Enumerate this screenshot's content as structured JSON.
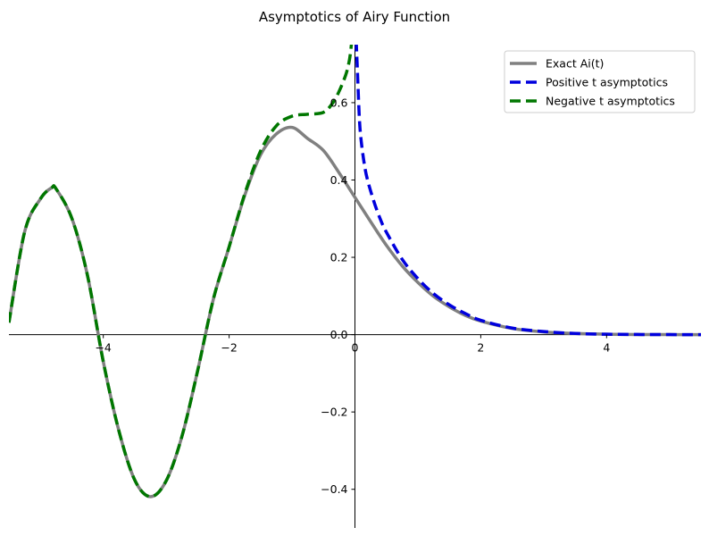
{
  "chart_data": {
    "type": "line",
    "title": "Asymptotics of Airy Function",
    "xlabel": "",
    "ylabel": "",
    "xlim": [
      -5.5,
      5.5
    ],
    "ylim": [
      -0.5,
      0.75
    ],
    "xticks": [
      -4,
      -2,
      0,
      2,
      4
    ],
    "xtick_labels": [
      "−4",
      "−2",
      "0",
      "2",
      "4"
    ],
    "yticks": [
      -0.4,
      -0.2,
      0.0,
      0.2,
      0.4,
      0.6
    ],
    "ytick_labels": [
      "−0.4",
      "−0.2",
      "0.0",
      "0.2",
      "0.4",
      "0.6"
    ],
    "grid": false,
    "legend_position": "top-right",
    "series": [
      {
        "name": "Exact Ai(t)",
        "color": "#808080",
        "style": "solid",
        "x": [
          -5.5,
          -5.25,
          -5.0,
          -4.82,
          -4.75,
          -4.5,
          -4.25,
          -4.0,
          -3.75,
          -3.5,
          -3.25,
          -3.0,
          -2.75,
          -2.5,
          -2.25,
          -2.0,
          -1.75,
          -1.5,
          -1.25,
          -1.0,
          -0.75,
          -0.5,
          -0.25,
          0.0,
          0.25,
          0.5,
          0.75,
          1.0,
          1.25,
          1.5,
          1.75,
          2.0,
          2.5,
          3.0,
          3.5,
          4.0,
          4.5,
          5.0,
          5.5
        ],
        "y": [
          0.031,
          0.266,
          0.351,
          0.38,
          0.377,
          0.301,
          0.152,
          -0.07,
          -0.25,
          -0.376,
          -0.419,
          -0.378,
          -0.263,
          -0.093,
          0.092,
          0.227,
          0.361,
          0.465,
          0.519,
          0.536,
          0.507,
          0.476,
          0.418,
          0.355,
          0.292,
          0.231,
          0.178,
          0.135,
          0.099,
          0.072,
          0.05,
          0.035,
          0.016,
          0.007,
          0.003,
          0.001,
          0.0003,
          0.0001,
          3e-05
        ]
      },
      {
        "name": "Positive t asymptotics",
        "color": "#0000dd",
        "style": "dashed",
        "x": [
          0.02,
          0.04,
          0.07,
          0.1,
          0.15,
          0.2,
          0.3,
          0.4,
          0.5,
          0.75,
          1.0,
          1.25,
          1.5,
          1.75,
          2.0,
          2.5,
          3.0,
          3.5,
          4.0,
          4.5,
          5.0,
          5.5
        ],
        "y": [
          0.76,
          0.68,
          0.56,
          0.5,
          0.44,
          0.4,
          0.345,
          0.3,
          0.265,
          0.195,
          0.145,
          0.106,
          0.077,
          0.055,
          0.037,
          0.017,
          0.008,
          0.003,
          0.001,
          0.0004,
          0.0001,
          4e-05
        ]
      },
      {
        "name": "Negative t asymptotics",
        "color": "#007700",
        "style": "dashed",
        "x": [
          -5.5,
          -5.25,
          -5.0,
          -4.82,
          -4.75,
          -4.5,
          -4.25,
          -4.0,
          -3.75,
          -3.5,
          -3.25,
          -3.0,
          -2.75,
          -2.5,
          -2.25,
          -2.0,
          -1.75,
          -1.5,
          -1.25,
          -1.0,
          -0.75,
          -0.5,
          -0.35,
          -0.25,
          -0.15,
          -0.1,
          -0.07,
          -0.04
        ],
        "y": [
          0.031,
          0.266,
          0.351,
          0.38,
          0.377,
          0.301,
          0.152,
          -0.07,
          -0.25,
          -0.376,
          -0.419,
          -0.378,
          -0.263,
          -0.093,
          0.092,
          0.227,
          0.365,
          0.475,
          0.54,
          0.565,
          0.57,
          0.575,
          0.6,
          0.63,
          0.67,
          0.7,
          0.73,
          0.78
        ]
      }
    ]
  }
}
